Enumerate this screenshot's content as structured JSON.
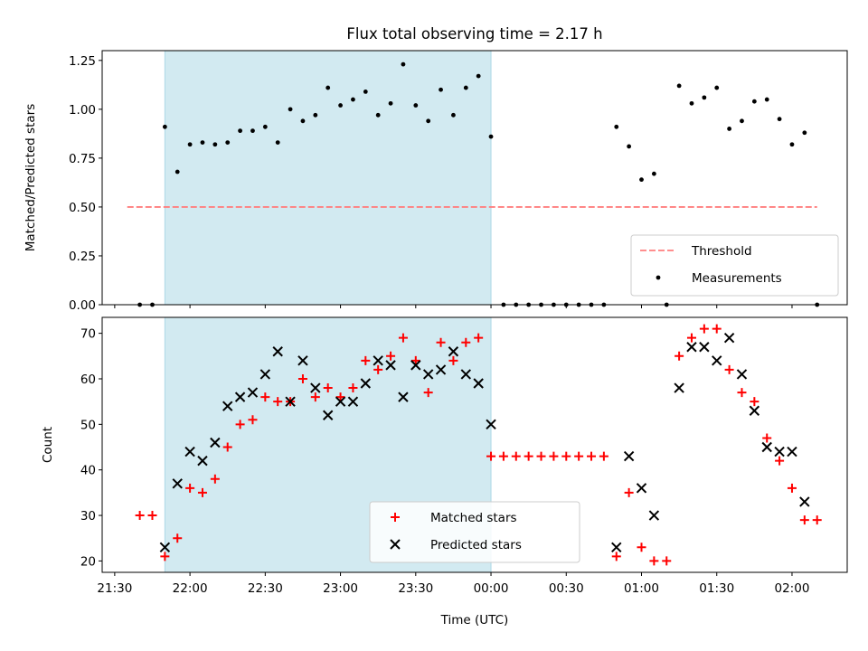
{
  "title": "Flux total observing time = 2.17 h",
  "colors": {
    "shade": "#add8e6",
    "threshold": "#ff7f7f",
    "measure": "#000000",
    "matched": "#ff0000",
    "predicted": "#000000"
  },
  "chart_data": [
    {
      "type": "scatter",
      "ylabel": "Matched/Predicted stars",
      "xlim": [
        "21:25",
        "02:22"
      ],
      "ylim": [
        0,
        1.3
      ],
      "yticks": [
        0,
        0.25,
        0.5,
        0.75,
        1.0,
        1.25
      ],
      "ytick_labels": [
        "0.00",
        "0.25",
        "0.50",
        "0.75",
        "1.00",
        "1.25"
      ],
      "shaded_span": [
        "21:50",
        "00:00"
      ],
      "threshold": {
        "name": "Threshold",
        "y": 0.5,
        "x_range": [
          "21:35",
          "02:10"
        ]
      },
      "legend": {
        "location": "lower right",
        "entries": [
          "Threshold",
          "Measurements"
        ]
      },
      "series": [
        {
          "name": "Measurements",
          "points": [
            [
              "21:40",
              0
            ],
            [
              "21:45",
              0
            ],
            [
              "21:50",
              0.91
            ],
            [
              "21:55",
              0.68
            ],
            [
              "22:00",
              0.82
            ],
            [
              "22:05",
              0.83
            ],
            [
              "22:10",
              0.82
            ],
            [
              "22:15",
              0.83
            ],
            [
              "22:20",
              0.89
            ],
            [
              "22:25",
              0.89
            ],
            [
              "22:30",
              0.91
            ],
            [
              "22:35",
              0.83
            ],
            [
              "22:40",
              1.0
            ],
            [
              "22:45",
              0.94
            ],
            [
              "22:50",
              0.97
            ],
            [
              "22:55",
              1.11
            ],
            [
              "23:00",
              1.02
            ],
            [
              "23:05",
              1.05
            ],
            [
              "23:10",
              1.09
            ],
            [
              "23:15",
              0.97
            ],
            [
              "23:20",
              1.03
            ],
            [
              "23:25",
              1.23
            ],
            [
              "23:30",
              1.02
            ],
            [
              "23:35",
              0.94
            ],
            [
              "23:40",
              1.1
            ],
            [
              "23:45",
              0.97
            ],
            [
              "23:50",
              1.11
            ],
            [
              "23:55",
              1.17
            ],
            [
              "00:00",
              0.86
            ],
            [
              "00:05",
              0
            ],
            [
              "00:10",
              0
            ],
            [
              "00:15",
              0
            ],
            [
              "00:20",
              0
            ],
            [
              "00:25",
              0
            ],
            [
              "00:30",
              0
            ],
            [
              "00:35",
              0
            ],
            [
              "00:40",
              0
            ],
            [
              "00:45",
              0
            ],
            [
              "00:50",
              0.91
            ],
            [
              "00:55",
              0.81
            ],
            [
              "01:00",
              0.64
            ],
            [
              "01:05",
              0.67
            ],
            [
              "01:10",
              0
            ],
            [
              "01:15",
              1.12
            ],
            [
              "01:20",
              1.03
            ],
            [
              "01:25",
              1.06
            ],
            [
              "01:30",
              1.11
            ],
            [
              "01:35",
              0.9
            ],
            [
              "01:40",
              0.94
            ],
            [
              "01:45",
              1.04
            ],
            [
              "01:50",
              1.05
            ],
            [
              "01:55",
              0.95
            ],
            [
              "02:00",
              0.82
            ],
            [
              "02:05",
              0.88
            ],
            [
              "02:10",
              0
            ]
          ]
        }
      ]
    },
    {
      "type": "scatter",
      "ylabel": "Count",
      "xlabel": "Time (UTC)",
      "xlim": [
        "21:25",
        "02:22"
      ],
      "ylim": [
        17.5,
        73.5
      ],
      "yticks": [
        20,
        30,
        40,
        50,
        60,
        70
      ],
      "ytick_labels": [
        "20",
        "30",
        "40",
        "50",
        "60",
        "70"
      ],
      "xticks": [
        "21:30",
        "22:00",
        "22:30",
        "23:00",
        "23:30",
        "00:00",
        "00:30",
        "01:00",
        "01:30",
        "02:00"
      ],
      "shaded_span": [
        "21:50",
        "00:00"
      ],
      "legend": {
        "location": "lower center",
        "entries": [
          "Matched stars",
          "Predicted stars"
        ]
      },
      "series": [
        {
          "name": "Matched stars",
          "marker": "+",
          "points": [
            [
              "21:40",
              30
            ],
            [
              "21:45",
              30
            ],
            [
              "21:50",
              21
            ],
            [
              "21:55",
              25
            ],
            [
              "22:00",
              36
            ],
            [
              "22:05",
              35
            ],
            [
              "22:10",
              38
            ],
            [
              "22:15",
              45
            ],
            [
              "22:20",
              50
            ],
            [
              "22:25",
              51
            ],
            [
              "22:30",
              56
            ],
            [
              "22:35",
              55
            ],
            [
              "22:40",
              55
            ],
            [
              "22:45",
              60
            ],
            [
              "22:50",
              56
            ],
            [
              "22:55",
              58
            ],
            [
              "23:00",
              56
            ],
            [
              "23:05",
              58
            ],
            [
              "23:10",
              64
            ],
            [
              "23:15",
              62
            ],
            [
              "23:20",
              65
            ],
            [
              "23:25",
              69
            ],
            [
              "23:30",
              64
            ],
            [
              "23:35",
              57
            ],
            [
              "23:40",
              68
            ],
            [
              "23:45",
              64
            ],
            [
              "23:50",
              68
            ],
            [
              "23:55",
              69
            ],
            [
              "00:00",
              43
            ],
            [
              "00:05",
              43
            ],
            [
              "00:10",
              43
            ],
            [
              "00:15",
              43
            ],
            [
              "00:20",
              43
            ],
            [
              "00:25",
              43
            ],
            [
              "00:30",
              43
            ],
            [
              "00:35",
              43
            ],
            [
              "00:40",
              43
            ],
            [
              "00:45",
              43
            ],
            [
              "00:50",
              21
            ],
            [
              "00:55",
              35
            ],
            [
              "01:00",
              23
            ],
            [
              "01:05",
              20
            ],
            [
              "01:10",
              20
            ],
            [
              "01:15",
              65
            ],
            [
              "01:20",
              69
            ],
            [
              "01:25",
              71
            ],
            [
              "01:30",
              71
            ],
            [
              "01:35",
              62
            ],
            [
              "01:40",
              57
            ],
            [
              "01:45",
              55
            ],
            [
              "01:50",
              47
            ],
            [
              "01:55",
              42
            ],
            [
              "02:00",
              36
            ],
            [
              "02:05",
              29
            ],
            [
              "02:10",
              29
            ]
          ]
        },
        {
          "name": "Predicted stars",
          "marker": "x",
          "points": [
            [
              "21:50",
              23
            ],
            [
              "21:55",
              37
            ],
            [
              "22:00",
              44
            ],
            [
              "22:05",
              42
            ],
            [
              "22:10",
              46
            ],
            [
              "22:15",
              54
            ],
            [
              "22:20",
              56
            ],
            [
              "22:25",
              57
            ],
            [
              "22:30",
              61
            ],
            [
              "22:35",
              66
            ],
            [
              "22:40",
              55
            ],
            [
              "22:45",
              64
            ],
            [
              "22:50",
              58
            ],
            [
              "22:55",
              52
            ],
            [
              "23:00",
              55
            ],
            [
              "23:05",
              55
            ],
            [
              "23:10",
              59
            ],
            [
              "23:15",
              64
            ],
            [
              "23:20",
              63
            ],
            [
              "23:25",
              56
            ],
            [
              "23:30",
              63
            ],
            [
              "23:35",
              61
            ],
            [
              "23:40",
              62
            ],
            [
              "23:45",
              66
            ],
            [
              "23:50",
              61
            ],
            [
              "23:55",
              59
            ],
            [
              "00:00",
              50
            ],
            [
              "00:50",
              23
            ],
            [
              "00:55",
              43
            ],
            [
              "01:00",
              36
            ],
            [
              "01:05",
              30
            ],
            [
              "01:15",
              58
            ],
            [
              "01:20",
              67
            ],
            [
              "01:25",
              67
            ],
            [
              "01:30",
              64
            ],
            [
              "01:35",
              69
            ],
            [
              "01:40",
              61
            ],
            [
              "01:45",
              53
            ],
            [
              "01:50",
              45
            ],
            [
              "01:55",
              44
            ],
            [
              "02:00",
              44
            ],
            [
              "02:05",
              33
            ]
          ]
        }
      ]
    }
  ]
}
